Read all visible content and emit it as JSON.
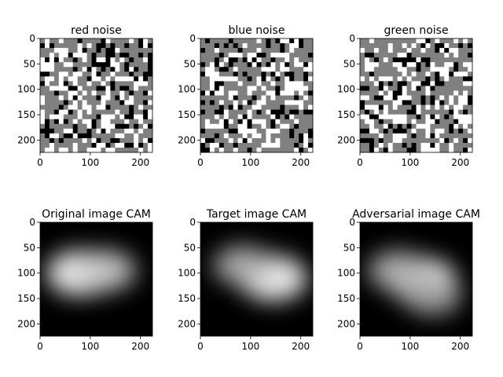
{
  "chart_data": [
    {
      "type": "heatmap",
      "title": "red noise",
      "content": "noise",
      "xlim": [
        0,
        224
      ],
      "ylim": [
        224,
        0
      ],
      "xticks": [
        0,
        100,
        200
      ],
      "yticks": [
        0,
        50,
        100,
        150,
        200
      ],
      "colormap": "gray",
      "grid": false
    },
    {
      "type": "heatmap",
      "title": "blue noise",
      "content": "noise",
      "xlim": [
        0,
        224
      ],
      "ylim": [
        224,
        0
      ],
      "xticks": [
        0,
        100,
        200
      ],
      "yticks": [
        0,
        50,
        100,
        150,
        200
      ],
      "colormap": "gray",
      "grid": false
    },
    {
      "type": "heatmap",
      "title": "green noise",
      "content": "noise",
      "xlim": [
        0,
        224
      ],
      "ylim": [
        224,
        0
      ],
      "xticks": [
        0,
        100,
        200
      ],
      "yticks": [
        0,
        50,
        100,
        150,
        200
      ],
      "colormap": "gray",
      "grid": false
    },
    {
      "type": "heatmap",
      "title": "Original image CAM",
      "content": "activation map",
      "xlim": [
        0,
        224
      ],
      "ylim": [
        224,
        0
      ],
      "xticks": [
        0,
        100,
        200
      ],
      "yticks": [
        0,
        50,
        100,
        150,
        200
      ],
      "colormap": "gray",
      "grid": false,
      "hotspots": [
        {
          "x": 80,
          "y": 100,
          "weight": 1.0
        },
        {
          "x": 130,
          "y": 95,
          "weight": 0.7
        }
      ]
    },
    {
      "type": "heatmap",
      "title": "Target image CAM",
      "content": "activation map",
      "xlim": [
        0,
        224
      ],
      "ylim": [
        224,
        0
      ],
      "xticks": [
        0,
        100,
        200
      ],
      "yticks": [
        0,
        50,
        100,
        150,
        200
      ],
      "colormap": "gray",
      "grid": false,
      "hotspots": [
        {
          "x": 145,
          "y": 110,
          "weight": 1.0
        },
        {
          "x": 85,
          "y": 85,
          "weight": 0.6
        }
      ]
    },
    {
      "type": "heatmap",
      "title": "Adversarial image CAM",
      "content": "activation map",
      "xlim": [
        0,
        224
      ],
      "ylim": [
        224,
        0
      ],
      "xticks": [
        0,
        100,
        200
      ],
      "yticks": [
        0,
        50,
        100,
        150,
        200
      ],
      "colormap": "gray",
      "grid": false,
      "hotspots": [
        {
          "x": 125,
          "y": 115,
          "weight": 1.0
        },
        {
          "x": 75,
          "y": 95,
          "weight": 0.6
        },
        {
          "x": 145,
          "y": 145,
          "weight": 0.5
        }
      ]
    }
  ],
  "colors": {
    "background": "#ffffff",
    "noise_levels": [
      "#000000",
      "#808080",
      "#ffffff"
    ],
    "cam_low": "#000000",
    "cam_high": "#ffffff"
  }
}
